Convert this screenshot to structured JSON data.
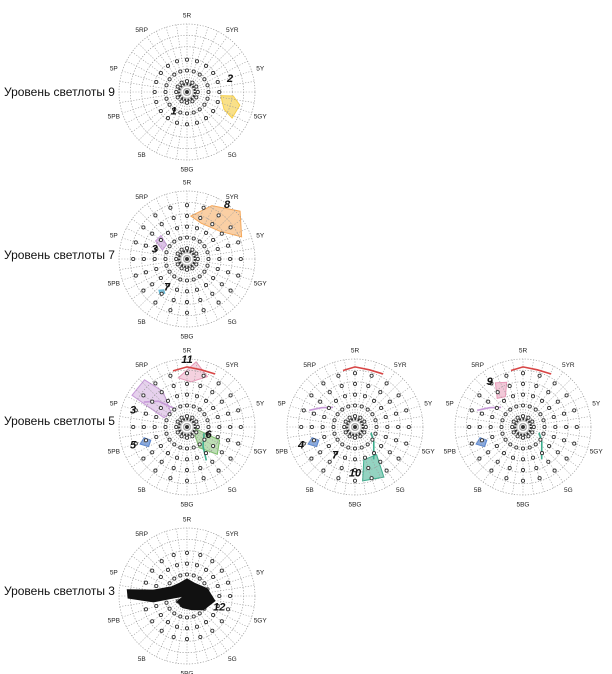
{
  "rows": [
    {
      "label": "Уровень светлоты 9"
    },
    {
      "label": "Уровень светлоты 7"
    },
    {
      "label": "Уровень светлоты 5"
    },
    {
      "label": "Уровень светлоты 3"
    }
  ],
  "hue_labels": [
    "5R",
    "5YR",
    "5Y",
    "5GY",
    "5G",
    "5BG",
    "5B",
    "5PB",
    "5P",
    "5RP"
  ],
  "colors": {
    "grid": "#9a9a9a",
    "dot": "#333333",
    "orange": "#f5a85a",
    "yellow": "#f6cf4a",
    "purple": "#c79ad8",
    "pink": "#e79ab8",
    "red": "#d84545",
    "green": "#7bbd6a",
    "teal": "#3cae8e",
    "blue": "#5a86cf",
    "lightblue": "#61b7d6"
  },
  "chart_data": [
    {
      "type": "polar-dot",
      "row_label": "Уровень светлоты 9",
      "axes": [
        "5R",
        "5YR",
        "5Y",
        "5GY",
        "5G",
        "5BG",
        "5B",
        "5PB",
        "5P",
        "5RP"
      ],
      "rings": 6,
      "grid": true,
      "annotations": [
        {
          "label": "1",
          "hue": "5B",
          "chroma": 2
        },
        {
          "label": "2",
          "hue": "5Y",
          "chroma": 4
        }
      ]
    },
    {
      "type": "polar-dot",
      "row_label": "Уровень светлоты 7",
      "axes": [
        "5R",
        "5YR",
        "5Y",
        "5GY",
        "5G",
        "5BG",
        "5B",
        "5PB",
        "5P",
        "5RP"
      ],
      "rings": 6,
      "grid": true,
      "annotations": [
        {
          "label": "8",
          "hue": "5YR",
          "chroma": 6
        },
        {
          "label": "3",
          "hue": "5P",
          "chroma": 3
        },
        {
          "label": "7",
          "hue": "5B",
          "chroma": 3
        }
      ]
    },
    {
      "type": "polar-dot",
      "row_label": "Уровень светлоты 5",
      "axes": [
        "5R",
        "5YR",
        "5Y",
        "5GY",
        "5G",
        "5BG",
        "5B",
        "5PB",
        "5P",
        "5RP"
      ],
      "rings": 6,
      "grid": true,
      "annotations": [
        {
          "label": "11",
          "hue": "5R",
          "chroma": 6
        },
        {
          "label": "3",
          "hue": "5P",
          "chroma": 5
        },
        {
          "label": "5",
          "hue": "5PB",
          "chroma": 5
        },
        {
          "label": "6",
          "hue": "5GY",
          "chroma": 2
        }
      ]
    },
    {
      "type": "polar-dot",
      "row_label": "Уровень светлоты 5",
      "axes": [
        "5R",
        "5YR",
        "5Y",
        "5GY",
        "5G",
        "5BG",
        "5B",
        "5PB",
        "5P",
        "5RP"
      ],
      "rings": 6,
      "grid": true,
      "annotations": [
        {
          "label": "4",
          "hue": "5PB",
          "chroma": 5
        },
        {
          "label": "7",
          "hue": "5B",
          "chroma": 3
        },
        {
          "label": "10",
          "hue": "5BG",
          "chroma": 4
        }
      ]
    },
    {
      "type": "polar-dot",
      "row_label": "Уровень светлоты 5",
      "axes": [
        "5R",
        "5YR",
        "5Y",
        "5GY",
        "5G",
        "5BG",
        "5B",
        "5PB",
        "5P",
        "5RP"
      ],
      "rings": 6,
      "grid": true,
      "annotations": [
        {
          "label": "9",
          "hue": "5RP",
          "chroma": 5
        }
      ]
    },
    {
      "type": "polar-dot",
      "row_label": "Уровень светлоты 3",
      "axes": [
        "5R",
        "5YR",
        "5Y",
        "5GY",
        "5G",
        "5BG",
        "5B",
        "5PB",
        "5P",
        "5RP"
      ],
      "rings": 6,
      "grid": true,
      "annotations": [
        {
          "label": "12",
          "hue": "5GY",
          "chroma": 3
        }
      ]
    }
  ]
}
